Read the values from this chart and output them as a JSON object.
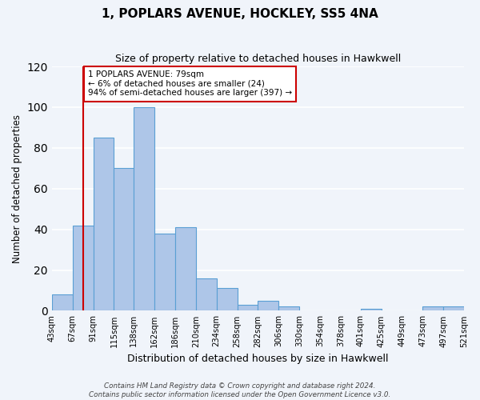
{
  "title": "1, POPLARS AVENUE, HOCKLEY, SS5 4NA",
  "subtitle": "Size of property relative to detached houses in Hawkwell",
  "xlabel": "Distribution of detached houses by size in Hawkwell",
  "ylabel": "Number of detached properties",
  "bar_edges": [
    43,
    67,
    91,
    115,
    138,
    162,
    186,
    210,
    234,
    258,
    282,
    306,
    330,
    354,
    378,
    401,
    425,
    449,
    473,
    497,
    521
  ],
  "bar_heights": [
    8,
    42,
    85,
    70,
    100,
    38,
    41,
    16,
    11,
    3,
    5,
    2,
    0,
    0,
    0,
    1,
    0,
    0,
    2,
    2
  ],
  "bar_color": "#aec6e8",
  "bar_edgecolor": "#5a9fd4",
  "tick_labels": [
    "43sqm",
    "67sqm",
    "91sqm",
    "115sqm",
    "138sqm",
    "162sqm",
    "186sqm",
    "210sqm",
    "234sqm",
    "258sqm",
    "282sqm",
    "306sqm",
    "330sqm",
    "354sqm",
    "378sqm",
    "401sqm",
    "425sqm",
    "449sqm",
    "473sqm",
    "497sqm",
    "521sqm"
  ],
  "ylim": [
    0,
    120
  ],
  "yticks": [
    0,
    20,
    40,
    60,
    80,
    100,
    120
  ],
  "property_value": 79,
  "redline_color": "#cc0000",
  "annotation_text": "1 POPLARS AVENUE: 79sqm\n← 6% of detached houses are smaller (24)\n94% of semi-detached houses are larger (397) →",
  "annotation_box_edgecolor": "#cc0000",
  "annotation_box_facecolor": "white",
  "footer_line1": "Contains HM Land Registry data © Crown copyright and database right 2024.",
  "footer_line2": "Contains public sector information licensed under the Open Government Licence v3.0.",
  "bg_color": "#f0f4fa",
  "grid_color": "white"
}
